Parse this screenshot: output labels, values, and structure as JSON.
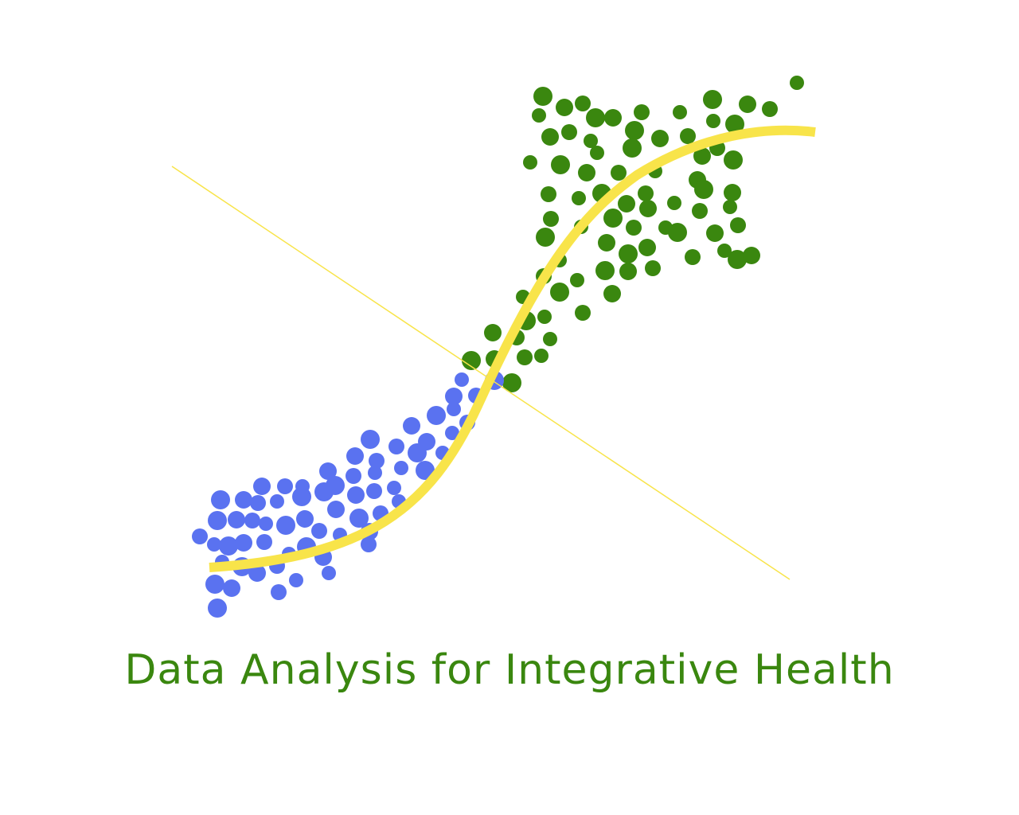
{
  "title": "Data Analysis for Integrative Health",
  "colors": {
    "title": "#3a870f",
    "green_dots": "#3a870f",
    "blue_dots": "#5a72f0",
    "curve": "#f8e44a",
    "divider_line": "#f8e44a",
    "background": "#ffffff"
  }
}
